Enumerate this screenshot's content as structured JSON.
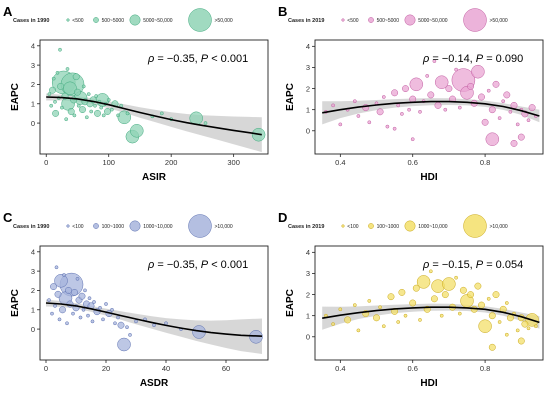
{
  "chart_data": [
    {
      "panel": "A",
      "type": "scatter",
      "xlabel": "ASIR",
      "ylabel": "EAPC",
      "xlim": [
        -10,
        355
      ],
      "ylim": [
        -1.6,
        4.3
      ],
      "xticks": [
        0,
        100,
        200,
        300
      ],
      "yticks": [
        0,
        1,
        2,
        3,
        4
      ],
      "legend": {
        "title": "Cases in 1990",
        "placement": "top",
        "labels": [
          "<500",
          "500~5000",
          "5000~50,000",
          ">50,000"
        ]
      },
      "annotation": {
        "rho_symbol": "ρ",
        "rho_text": " = −0.35, ",
        "p_symbol": "P",
        "p_text": " < 0.001"
      },
      "fill": "#8fd3b5",
      "stroke": "#3fa97d",
      "curve": {
        "x": [
          0,
          25,
          50,
          75,
          100,
          125,
          150,
          175,
          200,
          225,
          250,
          275,
          300,
          325,
          345
        ],
        "y": [
          1.35,
          1.32,
          1.25,
          1.12,
          0.95,
          0.75,
          0.55,
          0.36,
          0.18,
          0.02,
          -0.12,
          -0.25,
          -0.38,
          -0.5,
          -0.6
        ],
        "band": [
          0.18,
          0.15,
          0.14,
          0.15,
          0.18,
          0.22,
          0.27,
          0.32,
          0.38,
          0.45,
          0.53,
          0.62,
          0.72,
          0.82,
          0.9
        ]
      },
      "points": [
        [
          5,
          1.5,
          1
        ],
        [
          8,
          0.9,
          1
        ],
        [
          10,
          1.7,
          2
        ],
        [
          12,
          2.3,
          1
        ],
        [
          14,
          1.1,
          1
        ],
        [
          15,
          0.5,
          2
        ],
        [
          18,
          2.6,
          1
        ],
        [
          20,
          1.3,
          1
        ],
        [
          22,
          3.8,
          1
        ],
        [
          23,
          1.9,
          2
        ],
        [
          25,
          0.8,
          1
        ],
        [
          28,
          2.1,
          4
        ],
        [
          30,
          1.4,
          2
        ],
        [
          32,
          0.2,
          1
        ],
        [
          34,
          2.8,
          1
        ],
        [
          35,
          1.0,
          3
        ],
        [
          38,
          1.8,
          3
        ],
        [
          40,
          0.6,
          2
        ],
        [
          42,
          2.0,
          4
        ],
        [
          44,
          1.2,
          2
        ],
        [
          45,
          0.4,
          1
        ],
        [
          48,
          2.4,
          2
        ],
        [
          50,
          1.6,
          2
        ],
        [
          52,
          0.9,
          1
        ],
        [
          55,
          1.3,
          3
        ],
        [
          58,
          0.7,
          2
        ],
        [
          60,
          1.9,
          1
        ],
        [
          62,
          1.1,
          2
        ],
        [
          65,
          0.3,
          1
        ],
        [
          68,
          1.5,
          1
        ],
        [
          70,
          1.0,
          2
        ],
        [
          72,
          0.6,
          1
        ],
        [
          75,
          1.2,
          2
        ],
        [
          78,
          0.9,
          1
        ],
        [
          80,
          1.4,
          1
        ],
        [
          82,
          0.5,
          2
        ],
        [
          85,
          1.1,
          1
        ],
        [
          88,
          0.8,
          1
        ],
        [
          90,
          1.2,
          3
        ],
        [
          92,
          0.4,
          1
        ],
        [
          95,
          1.0,
          1
        ],
        [
          98,
          0.6,
          2
        ],
        [
          100,
          1.2,
          1
        ],
        [
          105,
          0.7,
          1
        ],
        [
          110,
          1.0,
          2
        ],
        [
          115,
          0.4,
          1
        ],
        [
          120,
          0.9,
          1
        ],
        [
          125,
          0.3,
          3
        ],
        [
          130,
          0.5,
          1
        ],
        [
          138,
          -0.7,
          3
        ],
        [
          145,
          -0.4,
          3
        ],
        [
          170,
          0.35,
          1
        ],
        [
          185,
          0.5,
          1
        ],
        [
          200,
          0.2,
          1
        ],
        [
          240,
          0.25,
          3
        ],
        [
          255,
          0.0,
          1
        ],
        [
          340,
          -0.6,
          3
        ]
      ]
    },
    {
      "panel": "B",
      "type": "scatter",
      "xlabel": "HDI",
      "ylabel": "EAPC",
      "xlim": [
        0.33,
        0.96
      ],
      "ylim": [
        -1.1,
        4.3
      ],
      "xticks": [
        0.4,
        0.6,
        0.8
      ],
      "yticks": [
        0,
        1,
        2,
        3,
        4
      ],
      "legend": {
        "title": "Cases in 2019",
        "placement": "top",
        "labels": [
          "<500",
          "500~5000",
          "5000~50,000",
          ">50,000"
        ]
      },
      "annotation": {
        "rho_symbol": "ρ",
        "rho_text": " = −0.14, ",
        "p_symbol": "P",
        "p_text": " = 0.090"
      },
      "fill": "#e9a6d3",
      "stroke": "#c05aa0",
      "curve": {
        "x": [
          0.35,
          0.4,
          0.45,
          0.5,
          0.55,
          0.6,
          0.65,
          0.7,
          0.75,
          0.8,
          0.85,
          0.9,
          0.95
        ],
        "y": [
          0.85,
          1.0,
          1.12,
          1.22,
          1.3,
          1.35,
          1.38,
          1.38,
          1.35,
          1.28,
          1.15,
          0.95,
          0.7
        ],
        "band": [
          0.55,
          0.4,
          0.3,
          0.24,
          0.2,
          0.18,
          0.17,
          0.16,
          0.15,
          0.15,
          0.16,
          0.2,
          0.3
        ]
      },
      "points": [
        [
          0.36,
          0.9,
          1
        ],
        [
          0.38,
          1.2,
          1
        ],
        [
          0.4,
          0.3,
          1
        ],
        [
          0.42,
          1.0,
          1
        ],
        [
          0.44,
          1.4,
          1
        ],
        [
          0.45,
          0.7,
          1
        ],
        [
          0.47,
          1.1,
          2
        ],
        [
          0.48,
          0.4,
          1
        ],
        [
          0.5,
          1.3,
          1
        ],
        [
          0.51,
          0.9,
          2
        ],
        [
          0.52,
          1.6,
          1
        ],
        [
          0.53,
          0.2,
          1
        ],
        [
          0.55,
          1.8,
          2
        ],
        [
          0.56,
          1.2,
          1
        ],
        [
          0.57,
          0.8,
          1
        ],
        [
          0.58,
          2.0,
          2
        ],
        [
          0.59,
          1.0,
          1
        ],
        [
          0.6,
          1.5,
          2
        ],
        [
          0.61,
          2.2,
          3
        ],
        [
          0.62,
          0.9,
          1
        ],
        [
          0.63,
          1.4,
          1
        ],
        [
          0.64,
          2.6,
          1
        ],
        [
          0.65,
          1.7,
          2
        ],
        [
          0.66,
          3.3,
          1
        ],
        [
          0.67,
          1.2,
          2
        ],
        [
          0.68,
          2.3,
          3
        ],
        [
          0.69,
          1.0,
          1
        ],
        [
          0.7,
          2.0,
          2
        ],
        [
          0.71,
          1.5,
          2
        ],
        [
          0.72,
          2.9,
          1
        ],
        [
          0.73,
          1.1,
          1
        ],
        [
          0.74,
          2.4,
          4
        ],
        [
          0.75,
          1.8,
          3
        ],
        [
          0.76,
          2.1,
          2
        ],
        [
          0.77,
          1.3,
          2
        ],
        [
          0.78,
          2.8,
          3
        ],
        [
          0.79,
          1.6,
          2
        ],
        [
          0.8,
          0.4,
          2
        ],
        [
          0.81,
          1.9,
          1
        ],
        [
          0.82,
          1.0,
          2
        ],
        [
          0.83,
          2.2,
          2
        ],
        [
          0.84,
          0.6,
          1
        ],
        [
          0.85,
          1.4,
          1
        ],
        [
          0.86,
          1.7,
          2
        ],
        [
          0.87,
          0.9,
          1
        ],
        [
          0.88,
          1.2,
          2
        ],
        [
          0.89,
          0.3,
          1
        ],
        [
          0.9,
          1.0,
          1
        ],
        [
          0.91,
          0.8,
          2
        ],
        [
          0.92,
          0.5,
          1
        ],
        [
          0.93,
          1.1,
          2
        ],
        [
          0.94,
          0.7,
          1
        ],
        [
          0.82,
          -0.4,
          3
        ],
        [
          0.88,
          -0.6,
          2
        ],
        [
          0.9,
          -0.3,
          2
        ],
        [
          0.6,
          -0.4,
          1
        ],
        [
          0.55,
          0.1,
          1
        ]
      ]
    },
    {
      "panel": "C",
      "type": "scatter",
      "xlabel": "ASDR",
      "ylabel": "EAPC",
      "xlim": [
        -2,
        74
      ],
      "ylim": [
        -1.6,
        4.3
      ],
      "xticks": [
        0,
        20,
        40,
        60
      ],
      "yticks": [
        0,
        1,
        2,
        3,
        4
      ],
      "legend": {
        "title": "Cases in 1990",
        "placement": "top",
        "labels": [
          "<100",
          "100~1000",
          "1000~10,000",
          ">10,000"
        ]
      },
      "annotation": {
        "rho_symbol": "ρ",
        "rho_text": " = −0.35, ",
        "p_symbol": "P",
        "p_text": " < 0.001"
      },
      "fill": "#a7b4dc",
      "stroke": "#5b6fb0",
      "curve": {
        "x": [
          0,
          5,
          10,
          15,
          20,
          25,
          30,
          35,
          40,
          45,
          50,
          55,
          60,
          65,
          72
        ],
        "y": [
          1.35,
          1.3,
          1.2,
          1.05,
          0.88,
          0.7,
          0.52,
          0.35,
          0.19,
          0.05,
          -0.08,
          -0.18,
          -0.26,
          -0.32,
          -0.37
        ],
        "band": [
          0.18,
          0.15,
          0.14,
          0.15,
          0.18,
          0.22,
          0.27,
          0.32,
          0.38,
          0.45,
          0.53,
          0.62,
          0.72,
          0.82,
          0.92
        ]
      },
      "points": [
        [
          1,
          1.5,
          1
        ],
        [
          2,
          0.8,
          1
        ],
        [
          2.5,
          2.2,
          2
        ],
        [
          3,
          1.2,
          1
        ],
        [
          3.5,
          3.2,
          1
        ],
        [
          4,
          1.8,
          2
        ],
        [
          4.5,
          0.5,
          1
        ],
        [
          5,
          2.5,
          3
        ],
        [
          5.5,
          1.0,
          2
        ],
        [
          6,
          2.8,
          1
        ],
        [
          6.5,
          1.6,
          3
        ],
        [
          7,
          0.3,
          1
        ],
        [
          7.5,
          2.0,
          2
        ],
        [
          8,
          1.3,
          2
        ],
        [
          8.5,
          2.3,
          4
        ],
        [
          9,
          0.8,
          1
        ],
        [
          9.5,
          1.9,
          2
        ],
        [
          10,
          1.1,
          2
        ],
        [
          10.5,
          2.6,
          1
        ],
        [
          11,
          1.5,
          2
        ],
        [
          11.5,
          0.6,
          1
        ],
        [
          12,
          1.7,
          2
        ],
        [
          12.5,
          1.0,
          1
        ],
        [
          13,
          2.0,
          1
        ],
        [
          13.5,
          1.3,
          2
        ],
        [
          14,
          0.7,
          1
        ],
        [
          14.5,
          1.6,
          1
        ],
        [
          15,
          1.2,
          2
        ],
        [
          15.5,
          0.4,
          1
        ],
        [
          16,
          1.4,
          1
        ],
        [
          17,
          0.9,
          2
        ],
        [
          18,
          1.1,
          1
        ],
        [
          19,
          0.5,
          1
        ],
        [
          20,
          1.3,
          1
        ],
        [
          21,
          0.8,
          2
        ],
        [
          22,
          1.0,
          1
        ],
        [
          23,
          0.3,
          1
        ],
        [
          24,
          0.6,
          1
        ],
        [
          25,
          0.2,
          2
        ],
        [
          26,
          -0.8,
          3
        ],
        [
          27,
          0.1,
          1
        ],
        [
          28,
          -0.3,
          1
        ],
        [
          30,
          0.4,
          1
        ],
        [
          33,
          0.5,
          1
        ],
        [
          36,
          0.2,
          1
        ],
        [
          40,
          0.3,
          1
        ],
        [
          45,
          0.0,
          1
        ],
        [
          51,
          -0.15,
          3
        ],
        [
          70,
          -0.4,
          3
        ]
      ]
    },
    {
      "panel": "D",
      "type": "scatter",
      "xlabel": "HDI",
      "ylabel": "EAPC",
      "xlim": [
        0.33,
        0.96
      ],
      "ylim": [
        -1.1,
        4.3
      ],
      "xticks": [
        0.4,
        0.6,
        0.8
      ],
      "yticks": [
        0,
        1,
        2,
        3,
        4
      ],
      "legend": {
        "title": "Cases in 2019",
        "placement": "top",
        "labels": [
          "<100",
          "100~1000",
          "1000~10,000",
          ">10,000"
        ]
      },
      "annotation": {
        "rho_symbol": "ρ",
        "rho_text": " = −0.15, ",
        "p_symbol": "P",
        "p_text": " = 0.054"
      },
      "fill": "#f3df6a",
      "stroke": "#c9a81a",
      "curve": {
        "x": [
          0.35,
          0.4,
          0.45,
          0.5,
          0.55,
          0.6,
          0.65,
          0.7,
          0.75,
          0.8,
          0.85,
          0.9,
          0.95
        ],
        "y": [
          0.88,
          1.02,
          1.14,
          1.24,
          1.32,
          1.37,
          1.4,
          1.4,
          1.37,
          1.3,
          1.16,
          0.95,
          0.68
        ],
        "band": [
          0.55,
          0.4,
          0.3,
          0.24,
          0.2,
          0.18,
          0.17,
          0.16,
          0.15,
          0.15,
          0.16,
          0.2,
          0.3
        ]
      },
      "points": [
        [
          0.36,
          1.0,
          1
        ],
        [
          0.38,
          0.6,
          1
        ],
        [
          0.4,
          1.3,
          1
        ],
        [
          0.42,
          0.8,
          2
        ],
        [
          0.44,
          1.5,
          1
        ],
        [
          0.45,
          0.3,
          1
        ],
        [
          0.47,
          1.1,
          2
        ],
        [
          0.48,
          1.7,
          1
        ],
        [
          0.5,
          0.9,
          2
        ],
        [
          0.51,
          1.4,
          1
        ],
        [
          0.52,
          0.5,
          1
        ],
        [
          0.54,
          1.9,
          2
        ],
        [
          0.55,
          1.2,
          2
        ],
        [
          0.56,
          0.7,
          1
        ],
        [
          0.57,
          2.1,
          2
        ],
        [
          0.58,
          1.0,
          1
        ],
        [
          0.6,
          1.6,
          2
        ],
        [
          0.61,
          2.3,
          2
        ],
        [
          0.62,
          0.8,
          1
        ],
        [
          0.63,
          2.6,
          3
        ],
        [
          0.64,
          1.3,
          2
        ],
        [
          0.65,
          3.1,
          1
        ],
        [
          0.66,
          1.8,
          2
        ],
        [
          0.67,
          2.4,
          3
        ],
        [
          0.68,
          1.0,
          1
        ],
        [
          0.69,
          2.0,
          2
        ],
        [
          0.7,
          2.5,
          3
        ],
        [
          0.71,
          1.4,
          2
        ],
        [
          0.72,
          2.8,
          1
        ],
        [
          0.73,
          1.1,
          1
        ],
        [
          0.74,
          2.2,
          2
        ],
        [
          0.75,
          1.7,
          3
        ],
        [
          0.76,
          2.0,
          2
        ],
        [
          0.77,
          1.3,
          2
        ],
        [
          0.78,
          2.4,
          2
        ],
        [
          0.79,
          1.5,
          2
        ],
        [
          0.8,
          0.5,
          3
        ],
        [
          0.81,
          1.8,
          1
        ],
        [
          0.82,
          1.0,
          2
        ],
        [
          0.83,
          2.0,
          2
        ],
        [
          0.84,
          0.7,
          1
        ],
        [
          0.85,
          1.3,
          2
        ],
        [
          0.86,
          1.6,
          1
        ],
        [
          0.87,
          0.9,
          2
        ],
        [
          0.88,
          1.1,
          1
        ],
        [
          0.89,
          0.3,
          1
        ],
        [
          0.9,
          0.9,
          2
        ],
        [
          0.91,
          0.6,
          2
        ],
        [
          0.92,
          0.4,
          1
        ],
        [
          0.93,
          0.8,
          3
        ],
        [
          0.94,
          0.5,
          1
        ],
        [
          0.82,
          -0.5,
          2
        ],
        [
          0.9,
          -0.2,
          2
        ],
        [
          0.86,
          0.1,
          1
        ]
      ]
    }
  ]
}
